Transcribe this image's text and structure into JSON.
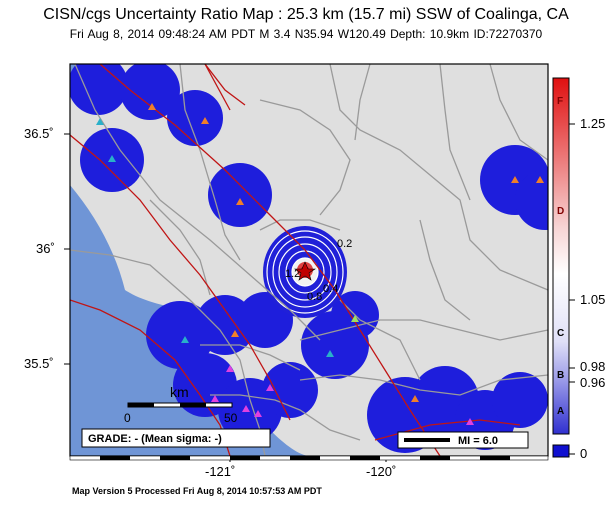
{
  "header": {
    "title": "CISN/cgs Uncertainty Ratio Map : 25.3 km (15.7 mi) SSW of Coalinga, CA",
    "subtitle": "Fri Aug  8, 2014 09:48:24 AM PDT   M 3.4   N35.94 W120.49   Depth: 10.9km   ID:72270370"
  },
  "map": {
    "lat_ticks": [
      "36.5˚",
      "36˚",
      "35.5˚"
    ],
    "lon_ticks": [
      "-121˚",
      "-120˚"
    ],
    "contour_labels": [
      "0.2",
      "1.2",
      "0.8",
      "0.4"
    ],
    "scale_bar": {
      "unit": "km",
      "start": "0",
      "end": "50"
    },
    "grade_label": "GRADE: - (Mean sigma: -)",
    "mi_legend": "MI = 6.0",
    "colors": {
      "water": "#6f95d6",
      "land": "#dfdfdf",
      "blob": "#1e1edc",
      "fault": "#c01515",
      "road": "#9a9a9a"
    }
  },
  "colorbar": {
    "values": [
      "1.25",
      "1.05",
      "0.98",
      "0.96",
      "0"
    ],
    "letters": [
      "F",
      "D",
      "C",
      "B",
      "A"
    ],
    "colors": {
      "top": "#e01010",
      "mid": "#ffffff",
      "bottom": "#1010d0"
    }
  },
  "footer": "Map Version 5 Processed Fri Aug  8, 2014 10:57:53 AM PDT"
}
